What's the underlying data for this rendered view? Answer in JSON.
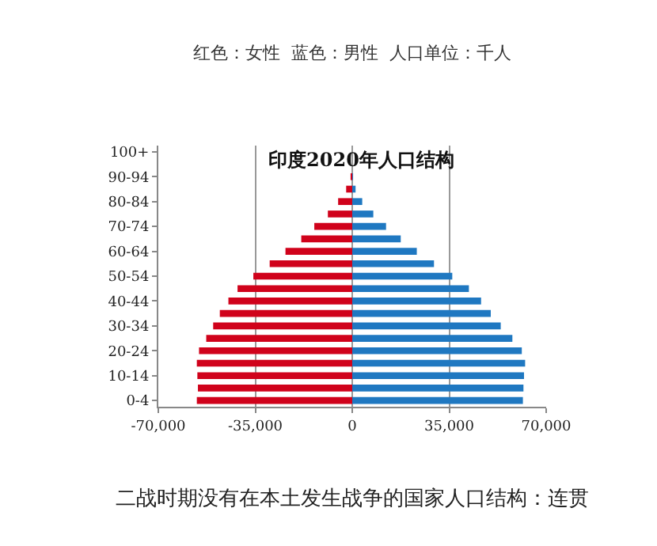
{
  "chart_data": {
    "type": "bar",
    "orientation": "horizontal",
    "title": "印度2020年人口结构",
    "subtitle": "红色：女性  蓝色：男性  人口单位：千人",
    "annotations": [
      "二战时期没有在本土发生战争的国家人口结构：连贯"
    ],
    "categories": [
      "100+",
      null,
      "90-94",
      null,
      "80-84",
      null,
      "70-74",
      null,
      "60-64",
      null,
      "50-54",
      null,
      "40-44",
      null,
      "30-34",
      null,
      "20-24",
      null,
      "10-14",
      null,
      "0-4"
    ],
    "series": [
      {
        "color": "#d0021b",
        "values": [
          0,
          0,
          -600,
          -2200,
          -5100,
          -8800,
          -13700,
          -18400,
          -24100,
          -29800,
          -35700,
          -41400,
          -44700,
          -47800,
          -50200,
          -52700,
          -55300,
          -56100,
          -55900,
          -55700,
          -56100
        ]
      },
      {
        "color": "#1f78c1",
        "values": [
          0,
          0,
          300,
          1200,
          3600,
          7600,
          12200,
          17500,
          23300,
          29500,
          36100,
          42100,
          46500,
          50000,
          53600,
          57800,
          61200,
          62400,
          62000,
          61800,
          61600
        ]
      }
    ],
    "xlim": [
      -70000,
      70000
    ],
    "xticks": [
      {
        "value": -70000,
        "label": "-70,000"
      },
      {
        "value": -35000,
        "label": "-35,000"
      },
      0,
      {
        "value": 35000,
        "label": "35,000"
      },
      {
        "value": 70000,
        "label": "70,000"
      }
    ],
    "grid": "x",
    "stacked": true
  }
}
